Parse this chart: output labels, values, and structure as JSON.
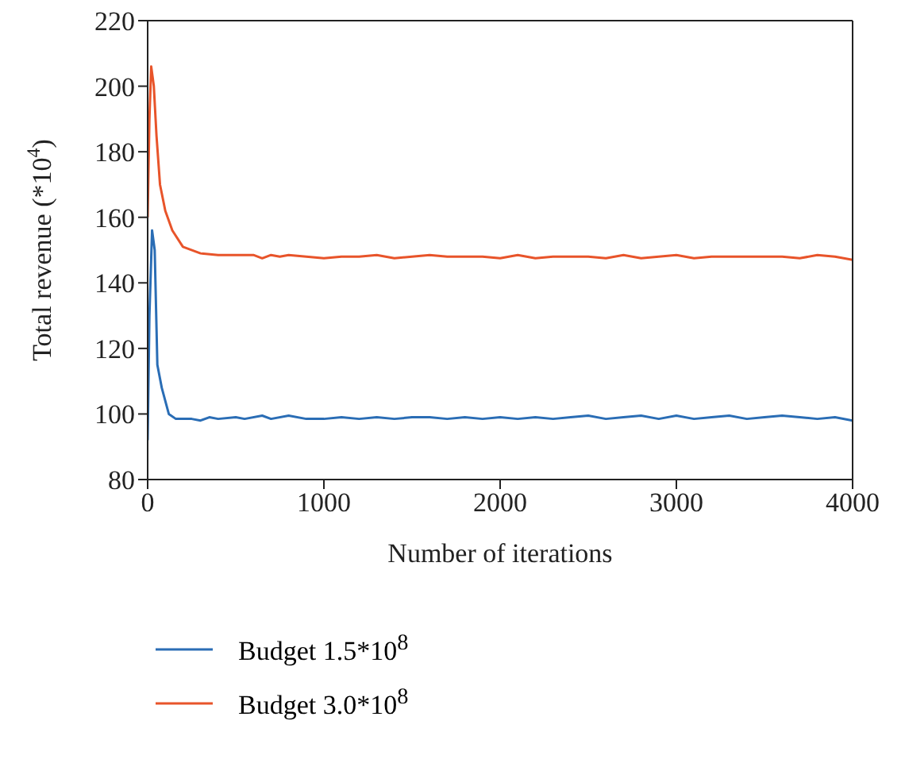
{
  "chart_data": {
    "type": "line",
    "xlabel": "Number of iterations",
    "ylabel": "Total revenue (*10$^{4}$)",
    "xlim": [
      0,
      4000
    ],
    "xticks": [
      0,
      1000,
      2000,
      3000,
      4000
    ],
    "ylim": [
      80,
      220
    ],
    "yticks": [
      80,
      100,
      120,
      140,
      160,
      180,
      200,
      220
    ],
    "grid": false,
    "legend": "bottom",
    "marker": "none",
    "line_style": "solid",
    "series": [
      {
        "name": "Budget 1.5*10$^{8}$",
        "color": "#2a6db5",
        "x": [
          0,
          10,
          25,
          40,
          55,
          80,
          120,
          160,
          250,
          300,
          350,
          400,
          500,
          550,
          650,
          700,
          800,
          900,
          1000,
          1100,
          1200,
          1300,
          1400,
          1500,
          1600,
          1700,
          1800,
          1900,
          2000,
          2100,
          2200,
          2300,
          2400,
          2500,
          2600,
          2700,
          2800,
          2900,
          3000,
          3100,
          3200,
          3300,
          3400,
          3500,
          3600,
          3700,
          3800,
          3900,
          4000
        ],
        "values": [
          92,
          130,
          156,
          150,
          115,
          108,
          100,
          98.5,
          98.5,
          98,
          99,
          98.5,
          99,
          98.5,
          99.5,
          98.5,
          99.5,
          98.5,
          98.5,
          99,
          98.5,
          99,
          98.5,
          99,
          99,
          98.5,
          99,
          98.5,
          99,
          98.5,
          99,
          98.5,
          99,
          99.5,
          98.5,
          99,
          99.5,
          98.5,
          99.5,
          98.5,
          99,
          99.5,
          98.5,
          99,
          99.5,
          99,
          98.5,
          99,
          98
        ]
      },
      {
        "name": "Budget 3.0*10$^{8}$",
        "color": "#e8542a",
        "x": [
          0,
          10,
          20,
          35,
          50,
          70,
          100,
          140,
          200,
          300,
          400,
          600,
          650,
          700,
          750,
          800,
          900,
          1000,
          1100,
          1200,
          1300,
          1400,
          1500,
          1600,
          1700,
          1800,
          1900,
          2000,
          2100,
          2200,
          2300,
          2400,
          2500,
          2600,
          2700,
          2800,
          2900,
          3000,
          3100,
          3200,
          3300,
          3400,
          3500,
          3600,
          3700,
          3800,
          3900,
          4000
        ],
        "values": [
          160,
          190,
          206,
          200,
          185,
          170,
          162,
          156,
          151,
          149,
          148.5,
          148.5,
          147.5,
          148.5,
          148,
          148.5,
          148,
          147.5,
          148,
          148,
          148.5,
          147.5,
          148,
          148.5,
          148,
          148,
          148,
          147.5,
          148.5,
          147.5,
          148,
          148,
          148,
          147.5,
          148.5,
          147.5,
          148,
          148.5,
          147.5,
          148,
          148,
          148,
          148,
          148,
          147.5,
          148.5,
          148,
          147
        ]
      }
    ]
  }
}
